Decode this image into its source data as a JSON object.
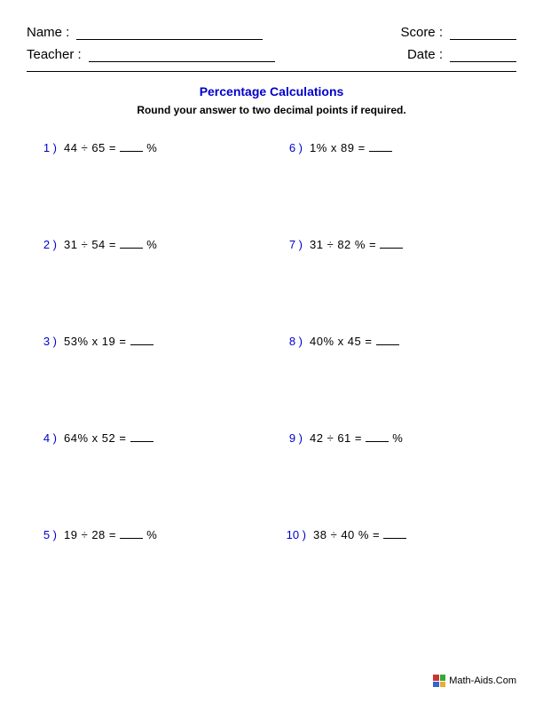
{
  "header": {
    "name_label": "Name :",
    "teacher_label": "Teacher :",
    "score_label": "Score :",
    "date_label": "Date :"
  },
  "title": "Percentage Calculations",
  "instruction": "Round your answer to two decimal points if required.",
  "problems_left": [
    {
      "num": "1 )",
      "text": "44  ÷  65  =",
      "suffix": " %"
    },
    {
      "num": "2 )",
      "text": "31  ÷  54  =",
      "suffix": " %"
    },
    {
      "num": "3 )",
      "text": "53%  x  19  =",
      "suffix": ""
    },
    {
      "num": "4 )",
      "text": "64%  x  52  =",
      "suffix": ""
    },
    {
      "num": "5 )",
      "text": "19  ÷  28  =",
      "suffix": " %"
    }
  ],
  "problems_right": [
    {
      "num": "6 )",
      "text": "1%  x  89  =",
      "suffix": ""
    },
    {
      "num": "7 )",
      "text": "31  ÷  82 %  =",
      "suffix": ""
    },
    {
      "num": "8 )",
      "text": "40%  x  45  =",
      "suffix": ""
    },
    {
      "num": "9 )",
      "text": "42  ÷  61  =",
      "suffix": " %"
    },
    {
      "num": "10 )",
      "text": "38  ÷  40 %  =",
      "suffix": ""
    }
  ],
  "footer_text": "Math-Aids.Com"
}
